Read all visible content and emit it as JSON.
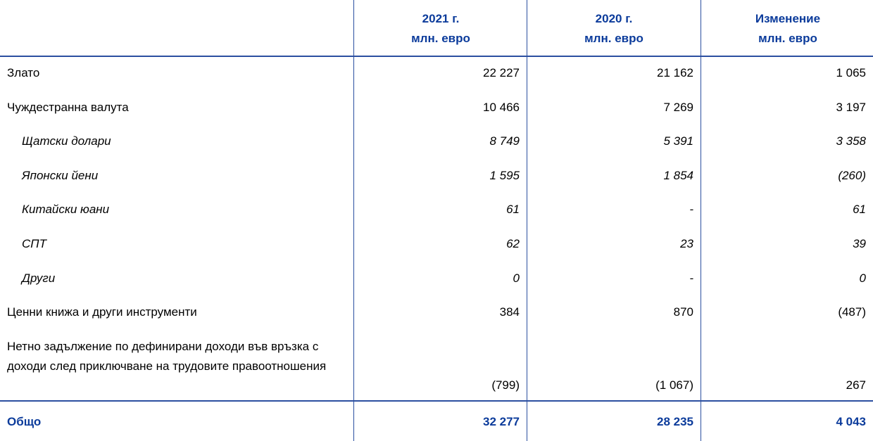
{
  "table": {
    "columns": [
      {
        "line1": "2021 г.",
        "line2": "млн. евро"
      },
      {
        "line1": "2020 г.",
        "line2": "млн. евро"
      },
      {
        "line1": "Изменение",
        "line2": "млн. евро"
      }
    ],
    "rows": [
      {
        "cells": [
          "Злато",
          "22 227",
          "21 162",
          "1 065"
        ]
      },
      {
        "cells": [
          "Чуждестранна валута",
          "10 466",
          "7 269",
          "3 197"
        ]
      },
      {
        "cells": [
          "Щатски долари",
          "8 749",
          "5 391",
          "3 358"
        ],
        "italic": true
      },
      {
        "cells": [
          "Японски йени",
          "1 595",
          "1 854",
          "(260)"
        ],
        "italic": true
      },
      {
        "cells": [
          "Китайски юани",
          "61",
          "-",
          "61"
        ],
        "italic": true
      },
      {
        "cells": [
          "СПТ",
          "62",
          "23",
          "39"
        ],
        "italic": true
      },
      {
        "cells": [
          "Други",
          "0",
          "-",
          "0"
        ],
        "italic": true
      },
      {
        "cells": [
          "Ценни книжа и други инструменти",
          "384",
          "870",
          "(487)"
        ]
      },
      {
        "cells": [
          "Нетно задължение по дефинирани доходи във връзка с доходи след приключване на трудовите правоотношения",
          "(799)",
          "(1 067)",
          "267"
        ]
      }
    ],
    "total": {
      "cells": [
        "Общо",
        "32 277",
        "28 235",
        "4 043"
      ]
    }
  }
}
